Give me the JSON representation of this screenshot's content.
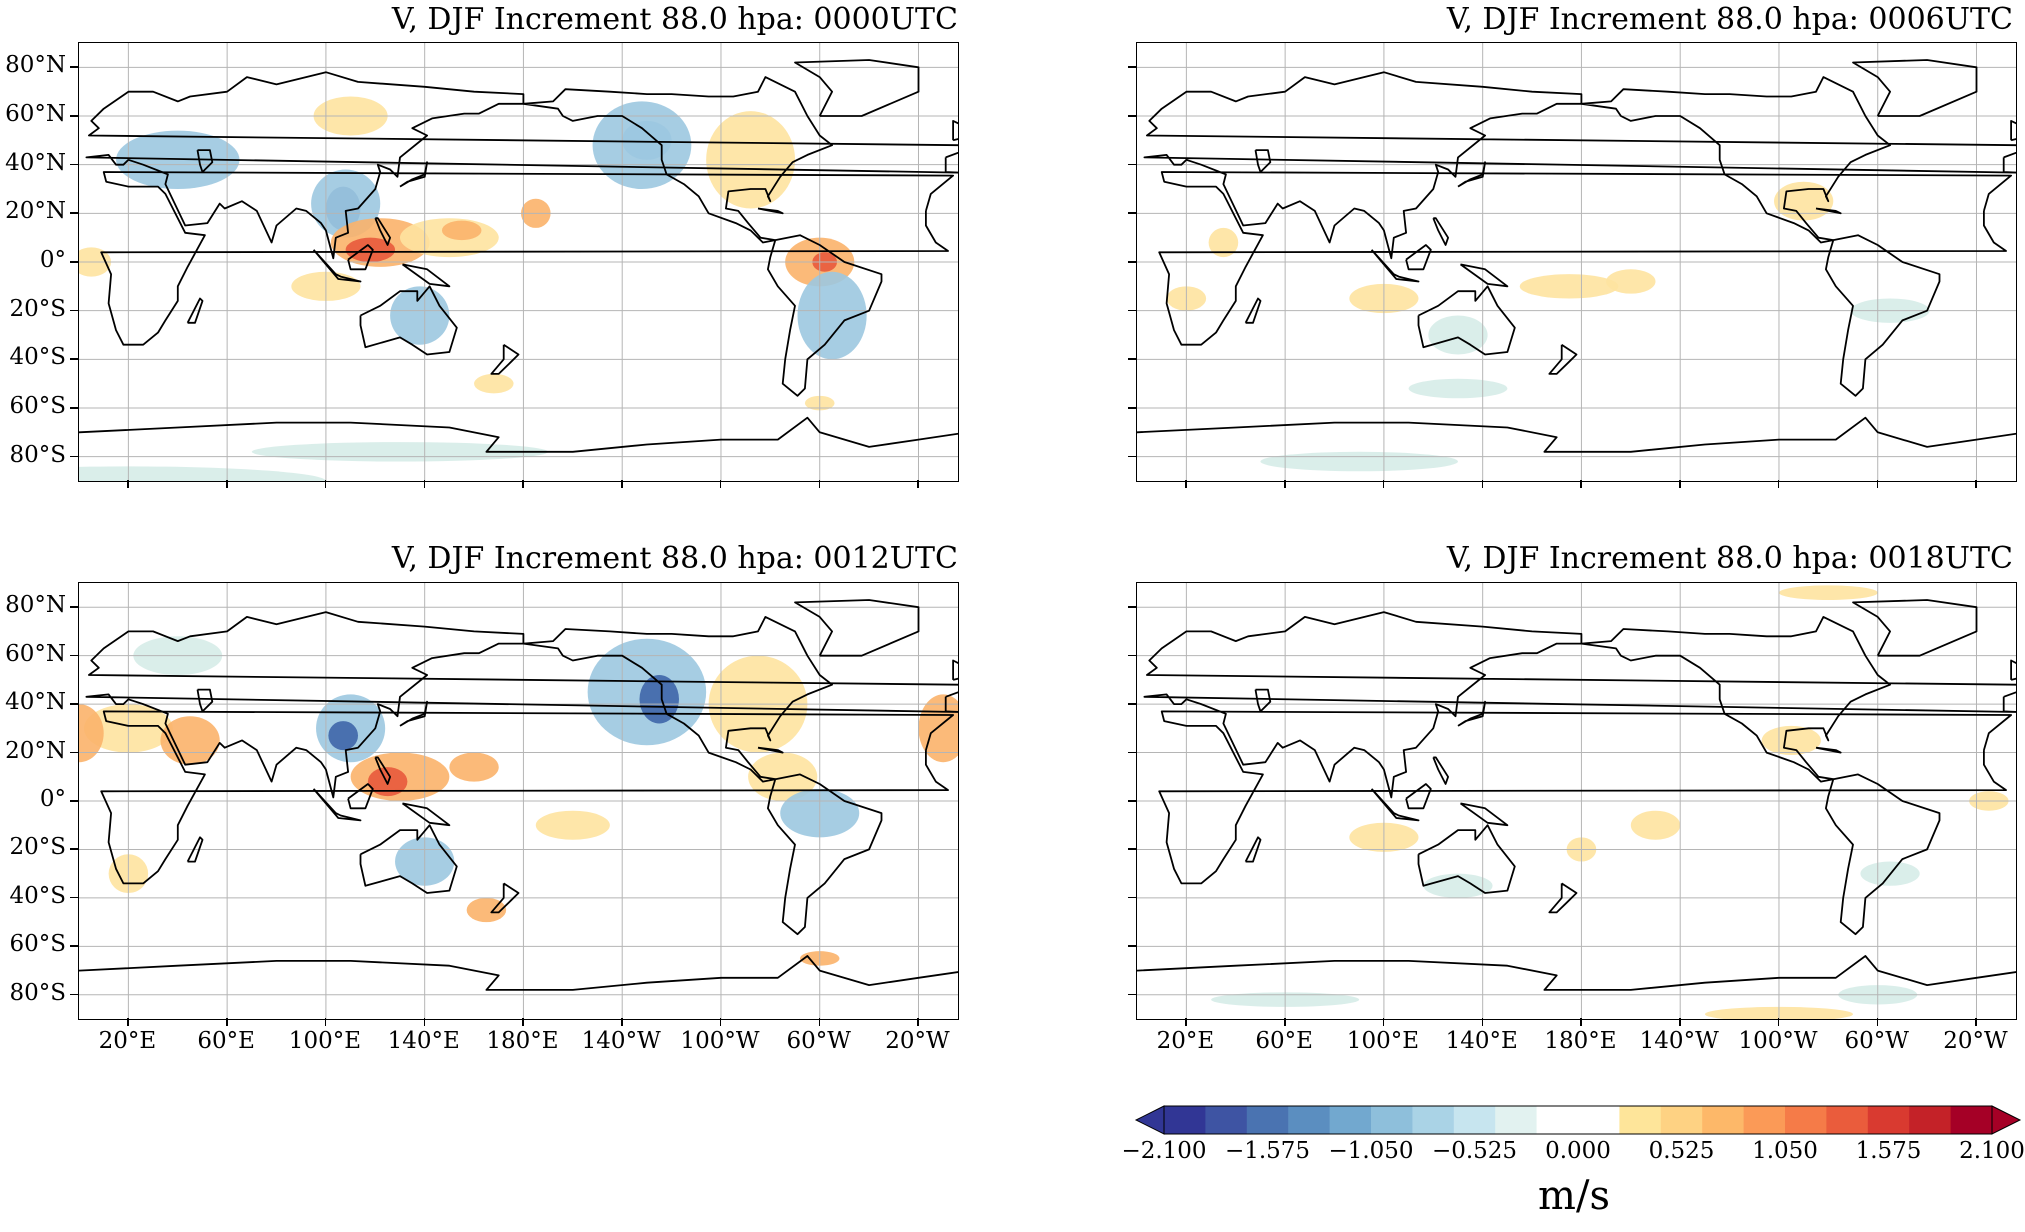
{
  "panels": [
    {
      "title": "V, DJF Increment 88.0 hpa: 0000UTC"
    },
    {
      "title": "V, DJF Increment 88.0 hpa: 0006UTC"
    },
    {
      "title": "V, DJF Increment 88.0 hpa: 0012UTC"
    },
    {
      "title": "V, DJF Increment 88.0 hpa: 0018UTC"
    }
  ],
  "lat_labels": [
    "80°N",
    "60°N",
    "40°N",
    "20°N",
    "0°",
    "20°S",
    "40°S",
    "60°S",
    "80°S"
  ],
  "lon_labels": [
    "20°E",
    "60°E",
    "100°E",
    "140°E",
    "180°E",
    "140°W",
    "100°W",
    "60°W",
    "20°W"
  ],
  "colorbar": {
    "tick_labels": [
      "−2.100",
      "−1.575",
      "−1.050",
      "−0.525",
      "0.000",
      "0.525",
      "1.050",
      "1.575",
      "2.100"
    ],
    "unit": "m/s",
    "colors": [
      "#313695",
      "#3e54a3",
      "#4a73b1",
      "#5b8ec0",
      "#72a8cf",
      "#8ebfdb",
      "#aad3e6",
      "#c7e5ef",
      "#e2f2f0",
      "#ffffff",
      "#ffffff",
      "#fee59a",
      "#fed283",
      "#fdb869",
      "#fb9a57",
      "#f57b48",
      "#ea5c3c",
      "#d93a30",
      "#c42228",
      "#a50026"
    ],
    "extend": "both"
  },
  "anomaly_colors": {
    "light_blue": "#d6ece8",
    "mid_blue": "#9cc8e0",
    "dark_blue": "#3f66a8",
    "light_orange": "#fee3a0",
    "mid_orange": "#fbb26a",
    "red": "#e85a3c"
  }
}
